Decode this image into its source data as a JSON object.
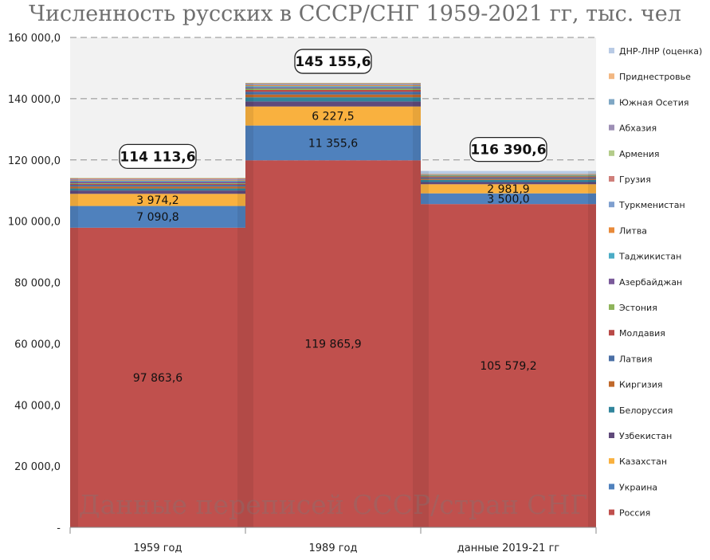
{
  "chart_data": {
    "type": "bar",
    "stacked": true,
    "title": "Численность русских в СССР/СНГ 1959-2021 гг, тыс. чел",
    "watermark": "Данные переписей СССР/стран СНГ",
    "categories": [
      "1959 год",
      "1989 год",
      "данные 2019-21 гг"
    ],
    "totals": [
      "114 113,6",
      "145 155,6",
      "116 390,6"
    ],
    "ylim": [
      0,
      160000
    ],
    "yticks": [
      "-",
      "20 000,0",
      "40 000,0",
      "60 000,0",
      "80 000,0",
      "100 000,0",
      "120 000,0",
      "140 000,0",
      "160 000,0"
    ],
    "grid": true,
    "legend_position": "right",
    "series": [
      {
        "name": "Россия",
        "color": "#c0504d",
        "values": [
          97863.6,
          119865.9,
          105579.2
        ],
        "labels": [
          "97 863,6",
          "119 865,9",
          "105 579,2"
        ]
      },
      {
        "name": "Украина",
        "color": "#4f81bd",
        "values": [
          7090.8,
          11355.6,
          3500.0
        ],
        "labels": [
          "7 090,8",
          "11 355,6",
          "3 500,0"
        ]
      },
      {
        "name": "Казахстан",
        "color": "#f9b13f",
        "values": [
          3974.2,
          6227.5,
          2981.9
        ],
        "labels": [
          "3 974,2",
          "6 227,5",
          "2 981,9"
        ]
      },
      {
        "name": "Узбекистан",
        "color": "#604a7b",
        "values": [
          1090,
          1653,
          720
        ]
      },
      {
        "name": "Белоруссия",
        "color": "#31859c",
        "values": [
          659,
          1342,
          706
        ]
      },
      {
        "name": "Киргизия",
        "color": "#c0692b",
        "values": [
          624,
          917,
          350
        ]
      },
      {
        "name": "Латвия",
        "color": "#4a6fa5",
        "values": [
          556,
          906,
          460
        ]
      },
      {
        "name": "Молдавия",
        "color": "#b94a48",
        "values": [
          293,
          562,
          300
        ]
      },
      {
        "name": "Эстония",
        "color": "#8fb45b",
        "values": [
          240,
          475,
          320
        ]
      },
      {
        "name": "Азербайджан",
        "color": "#7a5a9a",
        "values": [
          501,
          392,
          120
        ]
      },
      {
        "name": "Таджикистан",
        "color": "#4bacc6",
        "values": [
          263,
          388,
          30
        ]
      },
      {
        "name": "Литва",
        "color": "#e88a3a",
        "values": [
          231,
          344,
          140
        ]
      },
      {
        "name": "Туркменистан",
        "color": "#7f9fcf",
        "values": [
          263,
          334,
          100
        ]
      },
      {
        "name": "Грузия",
        "color": "#cf7f7a",
        "values": [
          408,
          341,
          26
        ]
      },
      {
        "name": "Армения",
        "color": "#b4cc8a",
        "values": [
          56,
          52,
          15
        ]
      },
      {
        "name": "Абхазия",
        "color": "#9d8fb5",
        "values": [
          0,
          0,
          12
        ]
      },
      {
        "name": "Южная Осетия",
        "color": "#7fa7c4",
        "values": [
          0,
          0,
          2
        ]
      },
      {
        "name": "Приднестровье",
        "color": "#f2b782",
        "values": [
          0,
          0,
          130
        ]
      },
      {
        "name": "ДНР-ЛНР (оценка)",
        "color": "#b9cbe5",
        "values": [
          0,
          0,
          900
        ]
      }
    ]
  }
}
